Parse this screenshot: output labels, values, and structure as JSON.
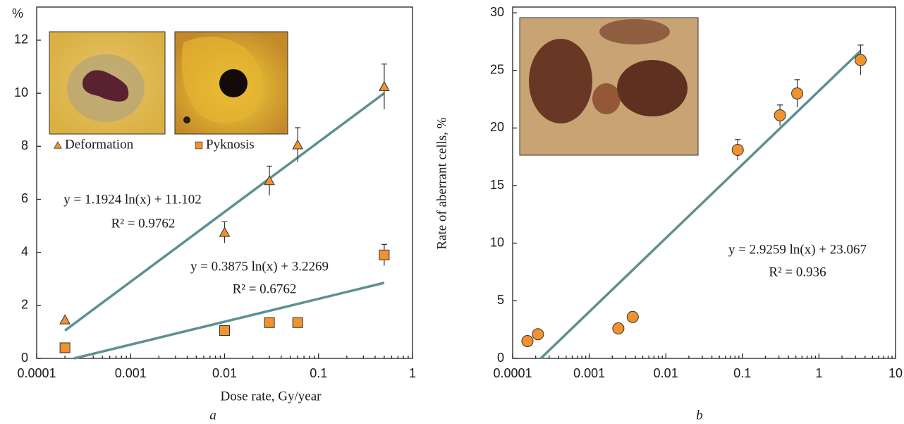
{
  "chart_data": [
    {
      "type": "scatter",
      "x_label": "Dose rate, Gy/year",
      "y_label": "%",
      "panel_label": "a",
      "xscale": "log",
      "xlim": [
        0.0001,
        1
      ],
      "ylim": [
        0,
        13.25
      ],
      "xticks": [
        0.0001,
        0.001,
        0.01,
        0.1,
        1
      ],
      "yticks": [
        0,
        2,
        4,
        6,
        8,
        10,
        12
      ],
      "series": [
        {
          "name": "Deformation",
          "marker": "triangle",
          "color": "#f0922e",
          "x": [
            0.0002,
            0.01,
            0.03,
            0.06,
            0.5
          ],
          "values": [
            1.45,
            4.75,
            6.7,
            8.05,
            10.25
          ],
          "errors": [
            null,
            0.4,
            0.55,
            0.65,
            0.85
          ]
        },
        {
          "name": "Pyknosis",
          "marker": "square",
          "color": "#f0922e",
          "x": [
            0.0002,
            0.01,
            0.03,
            0.06,
            0.5
          ],
          "values": [
            0.4,
            1.05,
            1.35,
            1.35,
            3.9
          ],
          "errors": [
            null,
            null,
            null,
            null,
            0.4
          ]
        }
      ],
      "trendlines": [
        {
          "color": "#5e9090",
          "x": [
            0.0002,
            0.5
          ],
          "y": [
            1.05,
            10.0
          ],
          "equation": "y = 1.1924 ln(x) + 11.102",
          "r2": "R² = 0.9762"
        },
        {
          "color": "#5e9090",
          "x": [
            0.00025,
            0.5
          ],
          "y": [
            0,
            2.85
          ],
          "equation": "y = 0.3875 ln(x) + 3.2269",
          "r2": "R² = 0.6762"
        }
      ]
    },
    {
      "type": "scatter",
      "y_label": "Rate of aberrant cells, %",
      "panel_label": "b",
      "xscale": "log",
      "xlim": [
        0.0001,
        10
      ],
      "ylim": [
        0,
        30.5
      ],
      "xticks": [
        0.0001,
        0.001,
        0.01,
        0.1,
        1,
        10
      ],
      "yticks": [
        0,
        5,
        10,
        15,
        20,
        25,
        30
      ],
      "series": [
        {
          "marker": "circle",
          "color": "#f0922e",
          "x": [
            0.000156,
            0.000214,
            0.0024,
            0.0037,
            0.087,
            0.31,
            0.52,
            3.5
          ],
          "values": [
            1.5,
            2.1,
            2.6,
            3.6,
            18.1,
            21.1,
            23.0,
            25.9
          ],
          "errors": [
            null,
            null,
            null,
            null,
            0.9,
            0.9,
            1.2,
            1.3
          ]
        }
      ],
      "trendlines": [
        {
          "color": "#5e9090",
          "x": [
            0.000233,
            3.5
          ],
          "y": [
            0,
            26.7
          ],
          "equation": "y = 2.9259 ln(x) + 23.067",
          "r2": "R² = 0.936"
        }
      ]
    }
  ]
}
